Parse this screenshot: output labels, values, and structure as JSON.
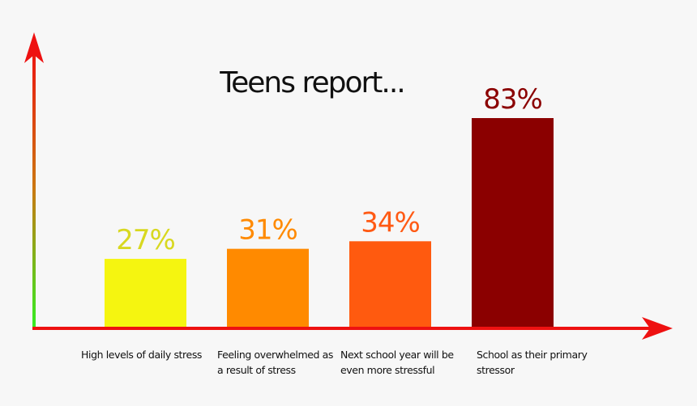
{
  "chart_data": {
    "type": "bar",
    "title": "Teens report...",
    "categories": [
      "High levels of daily stress",
      "Feeling overwhelmed as a result of stress",
      "Next school year will be even more stressful",
      "School as their primary stressor"
    ],
    "values": [
      27,
      31,
      34,
      83
    ],
    "value_labels": [
      "27%",
      "31%",
      "34%",
      "83%"
    ],
    "colors": [
      "#f5f510",
      "#ff8a00",
      "#ff5a0f",
      "#8b0000"
    ],
    "label_colors": [
      "#d8d820",
      "#ff8a00",
      "#ff5a14",
      "#8b0000"
    ]
  }
}
